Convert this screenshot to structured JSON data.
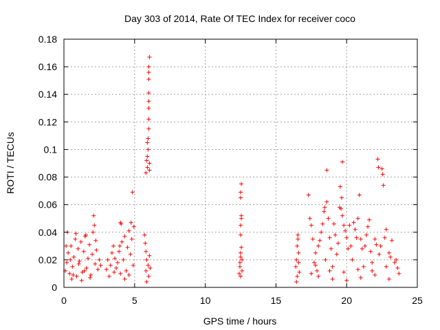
{
  "chart_data": {
    "type": "scatter",
    "title": "Day 303 of 2014, Rate Of TEC Index for receiver coco",
    "xlabel": "GPS time / hours",
    "ylabel": "ROTI / TECUs",
    "xlim": [
      0,
      25
    ],
    "ylim": [
      0,
      0.18
    ],
    "xticks": [
      0,
      5,
      10,
      15,
      20,
      25
    ],
    "xtick_labels": [
      "0",
      "5",
      "10",
      "15",
      "20",
      "25"
    ],
    "yticks": [
      0,
      0.02,
      0.04,
      0.06,
      0.08,
      0.1,
      0.12,
      0.14,
      0.16,
      0.18
    ],
    "ytick_labels": [
      "0",
      "0.02",
      "0.04",
      "0.06",
      "0.08",
      "0.1",
      "0.12",
      "0.14",
      "0.16",
      "0.18"
    ],
    "grid": true,
    "marker": "+",
    "marker_color": "#ff0000",
    "series": [
      {
        "name": "ROTI",
        "points": [
          [
            0.1,
            0.012
          ],
          [
            0.2,
            0.018
          ],
          [
            0.3,
            0.025
          ],
          [
            0.4,
            0.01
          ],
          [
            0.5,
            0.03
          ],
          [
            0.6,
            0.015
          ],
          [
            0.7,
            0.022
          ],
          [
            0.8,
            0.035
          ],
          [
            0.9,
            0.008
          ],
          [
            1.0,
            0.028
          ],
          [
            1.1,
            0.019
          ],
          [
            1.2,
            0.033
          ],
          [
            1.3,
            0.011
          ],
          [
            1.4,
            0.026
          ],
          [
            1.5,
            0.037
          ],
          [
            1.6,
            0.014
          ],
          [
            1.7,
            0.021
          ],
          [
            1.8,
            0.031
          ],
          [
            1.9,
            0.009
          ],
          [
            2.0,
            0.024
          ],
          [
            2.1,
            0.052
          ],
          [
            2.15,
            0.045
          ],
          [
            2.2,
            0.017
          ],
          [
            2.3,
            0.027
          ],
          [
            2.4,
            0.013
          ],
          [
            2.5,
            0.02
          ],
          [
            2.6,
            0.016
          ],
          [
            0.25,
            0.04
          ],
          [
            0.55,
            0.006
          ],
          [
            0.85,
            0.039
          ],
          [
            1.25,
            0.005
          ],
          [
            1.55,
            0.038
          ],
          [
            1.85,
            0.007
          ],
          [
            2.05,
            0.04
          ],
          [
            2.25,
            0.034
          ],
          [
            0.15,
            0.03
          ],
          [
            0.45,
            0.02
          ],
          [
            0.65,
            0.009
          ],
          [
            1.05,
            0.017
          ],
          [
            1.45,
            0.012
          ],
          [
            3.0,
            0.013
          ],
          [
            3.1,
            0.02
          ],
          [
            3.2,
            0.008
          ],
          [
            3.3,
            0.016
          ],
          [
            3.4,
            0.025
          ],
          [
            3.5,
            0.03
          ],
          [
            3.55,
            0.011
          ],
          [
            3.6,
            0.021
          ],
          [
            3.7,
            0.014
          ],
          [
            3.8,
            0.018
          ],
          [
            3.9,
            0.026
          ],
          [
            4.0,
            0.047
          ],
          [
            4.05,
            0.046
          ],
          [
            4.1,
            0.033
          ],
          [
            4.2,
            0.02
          ],
          [
            4.3,
            0.037
          ],
          [
            4.4,
            0.012
          ],
          [
            4.5,
            0.029
          ],
          [
            4.6,
            0.041
          ],
          [
            4.7,
            0.024
          ],
          [
            4.75,
            0.047
          ],
          [
            4.8,
            0.035
          ],
          [
            4.85,
            0.069
          ],
          [
            4.9,
            0.016
          ],
          [
            4.95,
            0.044
          ],
          [
            4.0,
            0.01
          ],
          [
            4.3,
            0.006
          ],
          [
            4.6,
            0.009
          ],
          [
            3.95,
            0.03
          ],
          [
            5.7,
            0.038
          ],
          [
            5.75,
            0.032
          ],
          [
            5.8,
            0.026
          ],
          [
            5.8,
            0.012
          ],
          [
            5.85,
            0.02
          ],
          [
            5.85,
            0.004
          ],
          [
            5.9,
            0.087
          ],
          [
            5.9,
            0.095
          ],
          [
            5.95,
            0.1
          ],
          [
            5.95,
            0.108
          ],
          [
            5.95,
            0.016
          ],
          [
            6.0,
            0.115
          ],
          [
            6.0,
            0.122
          ],
          [
            6.0,
            0.13
          ],
          [
            6.0,
            0.135
          ],
          [
            6.0,
            0.141
          ],
          [
            6.0,
            0.151
          ],
          [
            6.0,
            0.156
          ],
          [
            6.0,
            0.16
          ],
          [
            6.05,
            0.167
          ],
          [
            6.05,
            0.09
          ],
          [
            6.05,
            0.085
          ],
          [
            6.0,
            0.008
          ],
          [
            6.05,
            0.023
          ],
          [
            6.1,
            0.014
          ],
          [
            5.8,
            0.083
          ],
          [
            5.85,
            0.092
          ],
          [
            5.9,
            0.105
          ],
          [
            12.4,
            0.01
          ],
          [
            12.45,
            0.018
          ],
          [
            12.5,
            0.022
          ],
          [
            12.5,
            0.025
          ],
          [
            12.55,
            0.029
          ],
          [
            12.5,
            0.038
          ],
          [
            12.5,
            0.045
          ],
          [
            12.55,
            0.05
          ],
          [
            12.55,
            0.052
          ],
          [
            12.5,
            0.065
          ],
          [
            12.5,
            0.069
          ],
          [
            12.55,
            0.075
          ],
          [
            12.6,
            0.012
          ],
          [
            12.45,
            0.015
          ],
          [
            12.5,
            0.008
          ],
          [
            12.6,
            0.02
          ],
          [
            16.4,
            0.015
          ],
          [
            16.45,
            0.02
          ],
          [
            16.5,
            0.03
          ],
          [
            16.55,
            0.038
          ],
          [
            16.5,
            0.008
          ],
          [
            16.6,
            0.025
          ],
          [
            16.65,
            0.011
          ],
          [
            16.55,
            0.035
          ],
          [
            16.45,
            0.004
          ],
          [
            16.6,
            0.018
          ],
          [
            17.3,
            0.067
          ],
          [
            17.4,
            0.05
          ],
          [
            17.5,
            0.045
          ],
          [
            17.6,
            0.035
          ],
          [
            17.7,
            0.018
          ],
          [
            17.8,
            0.025
          ],
          [
            17.9,
            0.012
          ],
          [
            18.0,
            0.03
          ],
          [
            18.1,
            0.034
          ],
          [
            18.2,
            0.04
          ],
          [
            18.3,
            0.046
          ],
          [
            18.4,
            0.055
          ],
          [
            18.45,
            0.058
          ],
          [
            18.5,
            0.02
          ],
          [
            18.6,
            0.085
          ],
          [
            18.6,
            0.062
          ],
          [
            18.7,
            0.05
          ],
          [
            18.8,
            0.036
          ],
          [
            18.9,
            0.028
          ],
          [
            19.0,
            0.015
          ],
          [
            19.1,
            0.046
          ],
          [
            19.2,
            0.038
          ],
          [
            19.3,
            0.024
          ],
          [
            19.4,
            0.032
          ],
          [
            19.5,
            0.058
          ],
          [
            19.55,
            0.073
          ],
          [
            19.6,
            0.057
          ],
          [
            19.65,
            0.065
          ],
          [
            19.7,
            0.052
          ],
          [
            19.8,
            0.045
          ],
          [
            19.9,
            0.041
          ],
          [
            20.0,
            0.036
          ],
          [
            20.1,
            0.028
          ],
          [
            19.7,
            0.091
          ],
          [
            20.2,
            0.045
          ],
          [
            20.3,
            0.03
          ],
          [
            20.4,
            0.02
          ],
          [
            20.5,
            0.047
          ],
          [
            20.6,
            0.042
          ],
          [
            20.7,
            0.036
          ],
          [
            20.8,
            0.05
          ],
          [
            20.9,
            0.067
          ],
          [
            21.0,
            0.035
          ],
          [
            21.1,
            0.028
          ],
          [
            21.2,
            0.015
          ],
          [
            21.3,
            0.03
          ],
          [
            21.4,
            0.038
          ],
          [
            21.5,
            0.044
          ],
          [
            21.6,
            0.049
          ],
          [
            21.7,
            0.026
          ],
          [
            21.8,
            0.018
          ],
          [
            22.0,
            0.035
          ],
          [
            22.1,
            0.031
          ],
          [
            22.2,
            0.093
          ],
          [
            22.25,
            0.087
          ],
          [
            22.3,
            0.024
          ],
          [
            22.4,
            0.03
          ],
          [
            22.5,
            0.086
          ],
          [
            22.55,
            0.082
          ],
          [
            22.6,
            0.074
          ],
          [
            22.7,
            0.036
          ],
          [
            22.8,
            0.042
          ],
          [
            23.0,
            0.025
          ],
          [
            23.1,
            0.022
          ],
          [
            23.2,
            0.034
          ],
          [
            23.4,
            0.018
          ],
          [
            23.6,
            0.014
          ],
          [
            23.7,
            0.01
          ],
          [
            17.5,
            0.01
          ],
          [
            18.0,
            0.008
          ],
          [
            19.0,
            0.006
          ],
          [
            20.0,
            0.005
          ],
          [
            21.0,
            0.007
          ],
          [
            22.0,
            0.009
          ],
          [
            23.0,
            0.006
          ],
          [
            17.8,
            0.016
          ],
          [
            18.8,
            0.012
          ],
          [
            19.8,
            0.011
          ],
          [
            20.8,
            0.013
          ],
          [
            21.8,
            0.012
          ],
          [
            22.8,
            0.015
          ],
          [
            23.5,
            0.02
          ]
        ]
      }
    ]
  }
}
